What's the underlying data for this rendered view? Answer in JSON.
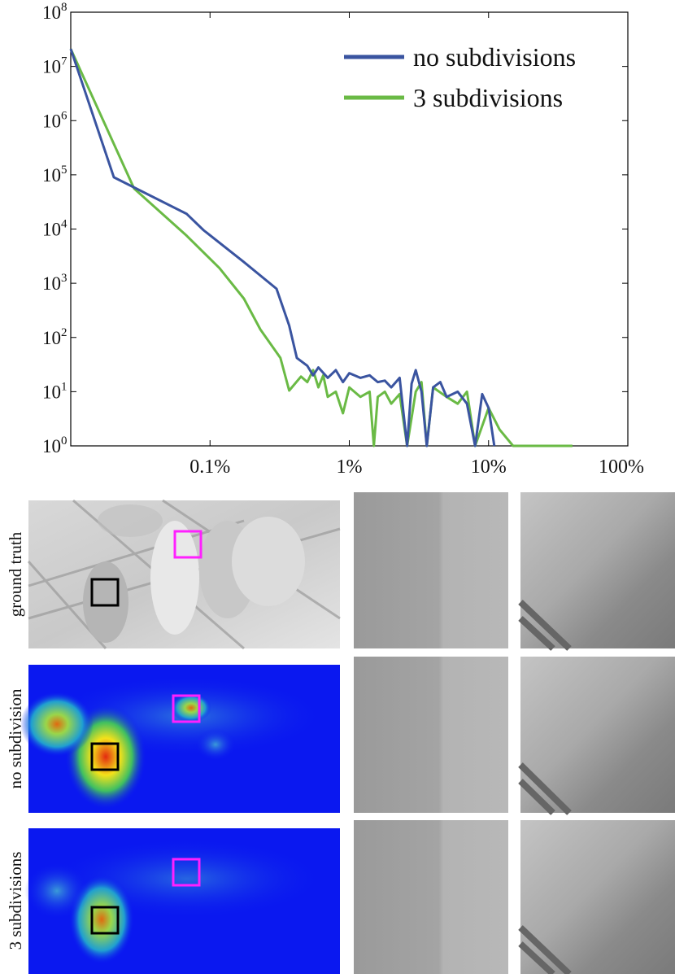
{
  "chart_data": {
    "type": "line",
    "xscale": "log",
    "yscale": "log",
    "legend": "upper right",
    "xlim": [
      0.01,
      100
    ],
    "ylim": [
      1,
      100000000
    ],
    "xticks": [
      {
        "value": 0.1,
        "label": "0.1%"
      },
      {
        "value": 1,
        "label": "1%"
      },
      {
        "value": 10,
        "label": "10%"
      },
      {
        "value": 100,
        "label": "100%"
      }
    ],
    "yticks": [
      {
        "value": 1,
        "label": "10",
        "exponent": "0"
      },
      {
        "value": 10,
        "label": "10",
        "exponent": "1"
      },
      {
        "value": 100,
        "label": "10",
        "exponent": "2"
      },
      {
        "value": 1000,
        "label": "10",
        "exponent": "3"
      },
      {
        "value": 10000,
        "label": "10",
        "exponent": "4"
      },
      {
        "value": 100000,
        "label": "10",
        "exponent": "5"
      },
      {
        "value": 1000000,
        "label": "10",
        "exponent": "6"
      },
      {
        "value": 10000000,
        "label": "10",
        "exponent": "7"
      },
      {
        "value": 100000000,
        "label": "10",
        "exponent": "8"
      }
    ],
    "series": [
      {
        "name": "no subdivisions",
        "color": "#3a54a0",
        "x": [
          0.01,
          0.0204,
          0.068,
          0.09,
          0.175,
          0.3,
          0.37,
          0.42,
          0.5,
          0.55,
          0.6,
          0.7,
          0.8,
          0.9,
          1.0,
          1.2,
          1.4,
          1.6,
          1.8,
          2.0,
          2.3,
          2.6,
          2.8,
          3.0,
          3.3,
          3.6,
          4,
          4.5,
          5,
          6,
          7,
          8,
          9,
          10,
          11
        ],
        "values": [
          21000000,
          90000,
          19000,
          9500,
          2460,
          790,
          166,
          42,
          30,
          20,
          28,
          18,
          25,
          15,
          22,
          18,
          20,
          15,
          16,
          12,
          18,
          1,
          14,
          25,
          10,
          1,
          12,
          15,
          8,
          10,
          6,
          1,
          9,
          5,
          1
        ]
      },
      {
        "name": "3 subdivisions",
        "color": "#6aba45",
        "x": [
          0.01,
          0.0285,
          0.068,
          0.117,
          0.175,
          0.23,
          0.32,
          0.37,
          0.45,
          0.5,
          0.55,
          0.6,
          0.65,
          0.7,
          0.8,
          0.9,
          1.0,
          1.2,
          1.4,
          1.5,
          1.6,
          1.8,
          2,
          2.3,
          2.6,
          3,
          3.3,
          3.6,
          4,
          5,
          6,
          7,
          8,
          10,
          12,
          15,
          20,
          30,
          40
        ],
        "values": [
          21000000,
          56000,
          7500,
          1900,
          520,
          140,
          42,
          10.5,
          19,
          15,
          25,
          12,
          20,
          8,
          10,
          4,
          12,
          8,
          10,
          1,
          8,
          10,
          6,
          9,
          1,
          10,
          15,
          1,
          12,
          8,
          6,
          10,
          1,
          5,
          2,
          1,
          1,
          1,
          1
        ]
      }
    ]
  },
  "figure": {
    "rows": [
      {
        "label": "ground truth"
      },
      {
        "label": "no subdivision"
      },
      {
        "label": "3 subdivisions"
      }
    ]
  }
}
